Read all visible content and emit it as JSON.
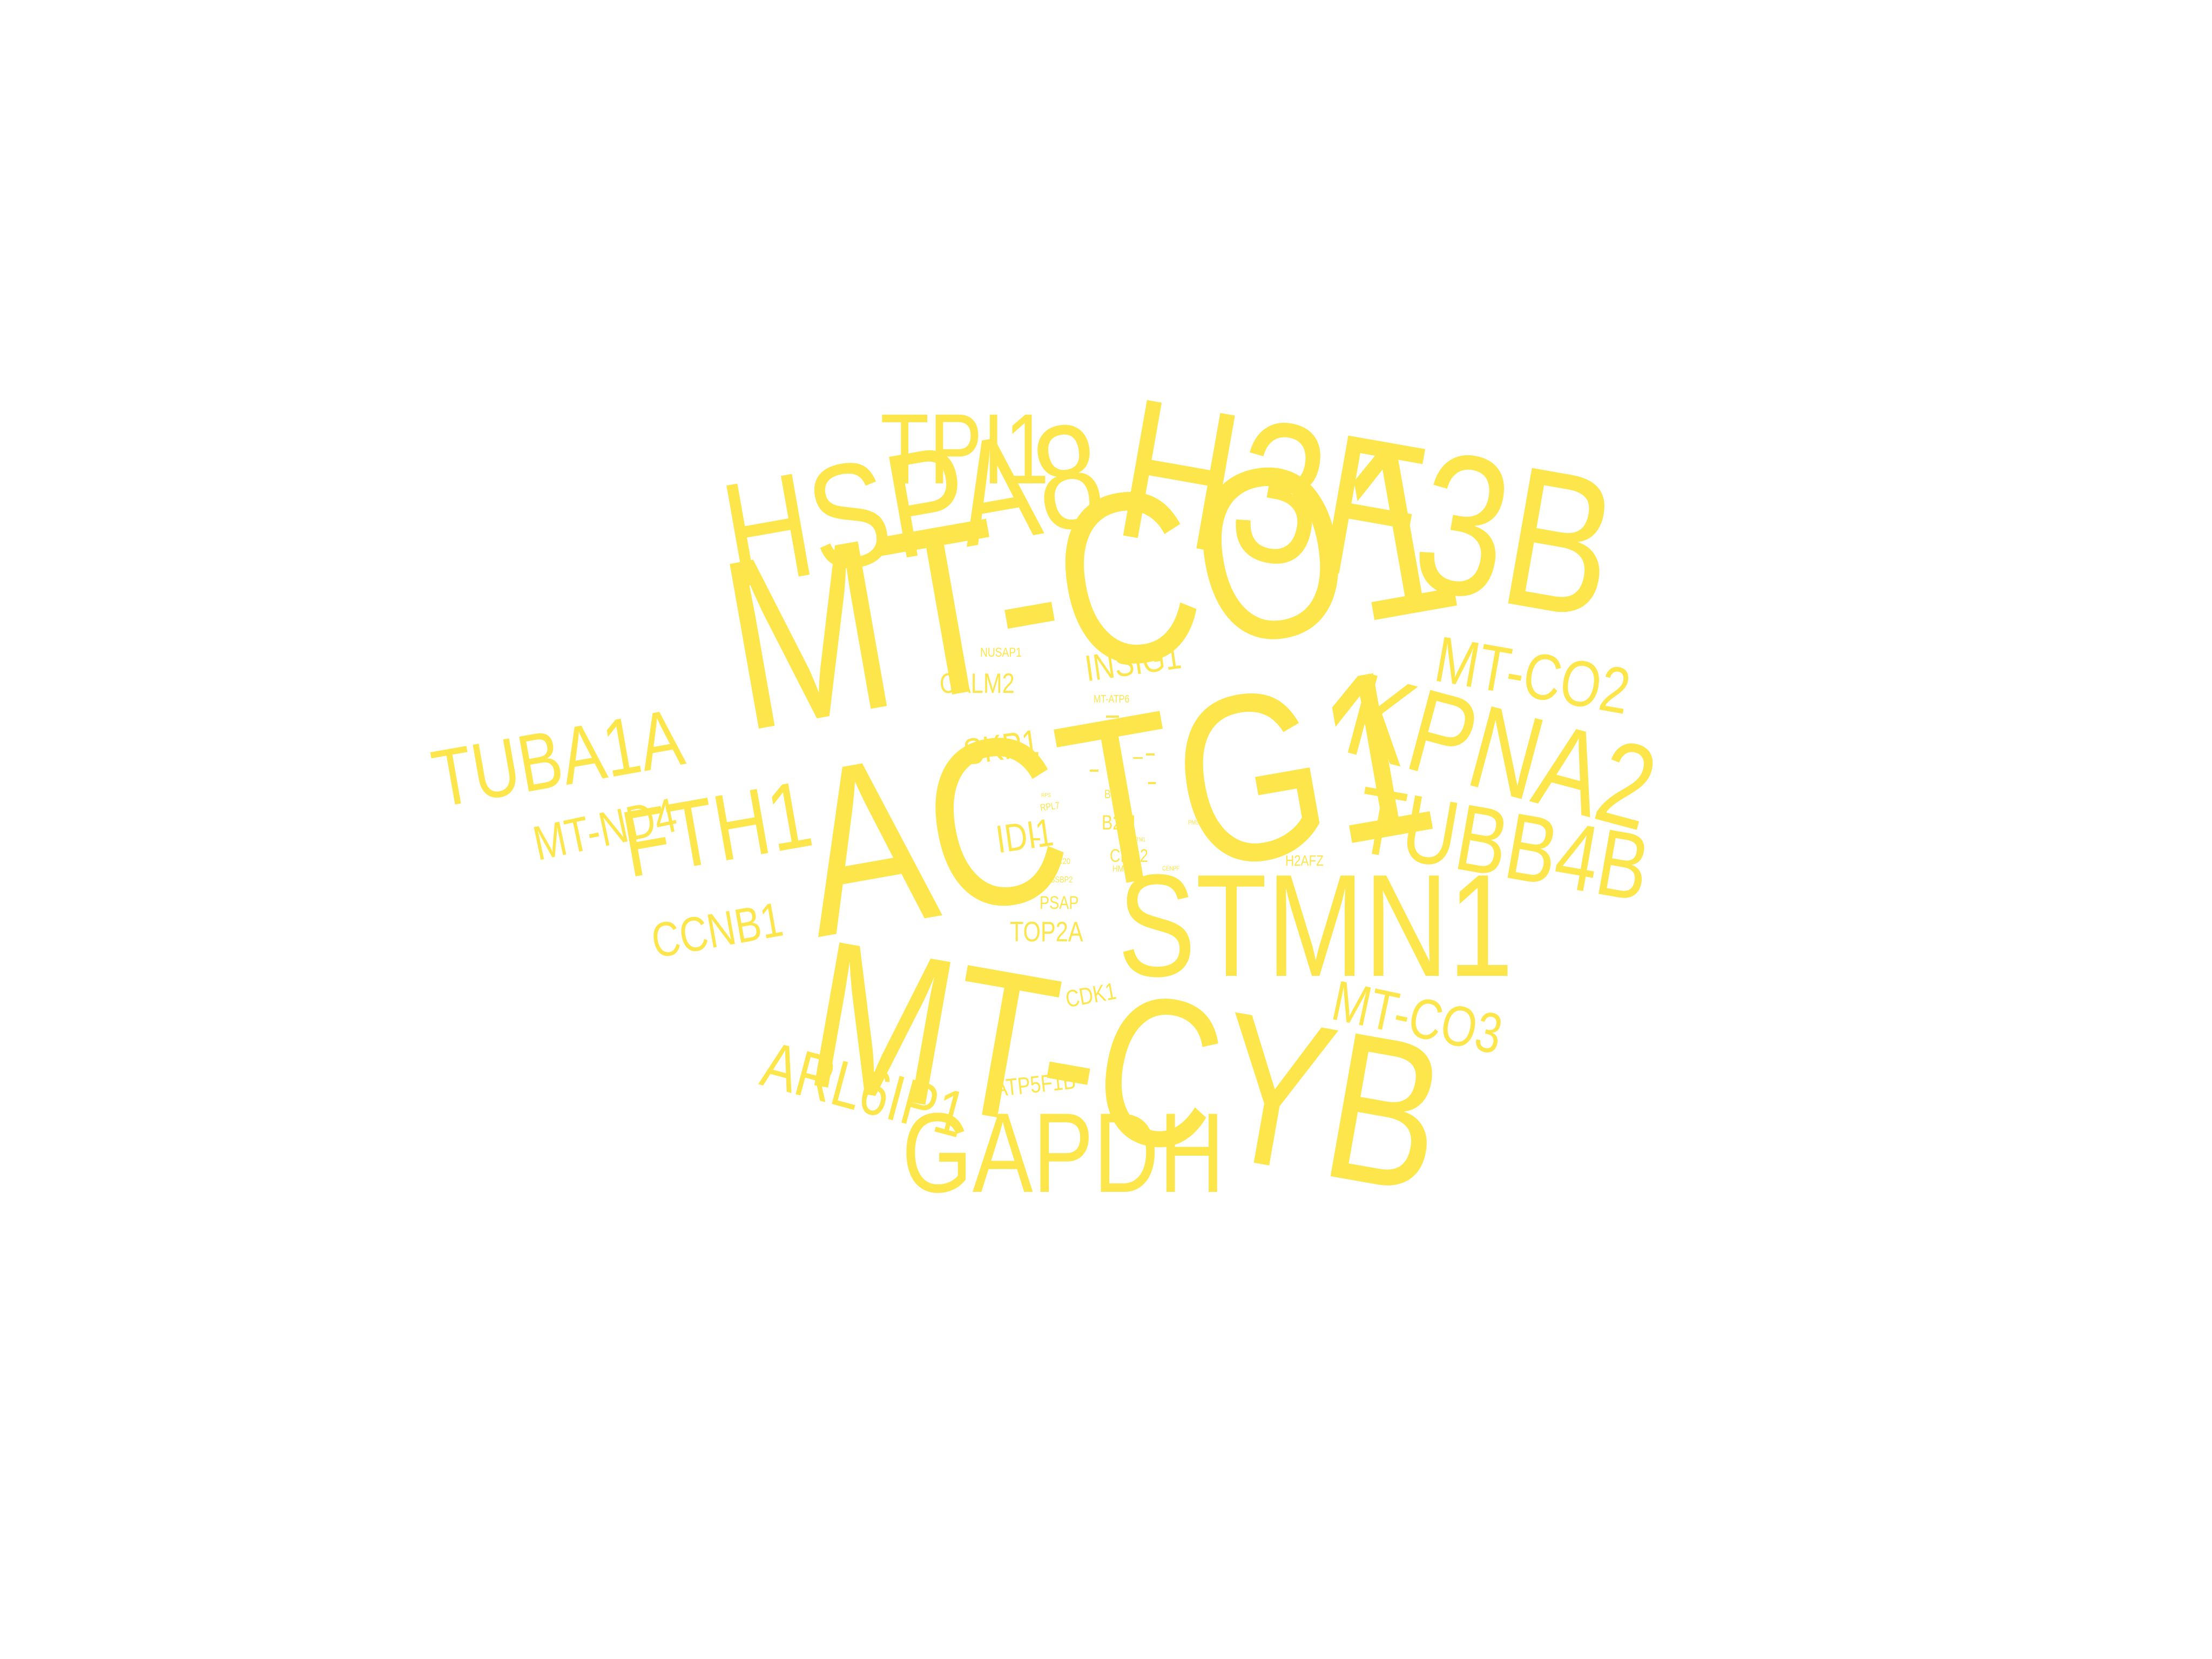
{
  "color": "#FDE64B",
  "background": "#FFFFFF",
  "words": [
    "MT-CO1",
    "ACTG1",
    "H3F3B",
    "MT-CYB",
    "STMN1",
    "HSPA8",
    "GAPDH",
    "KPNA2",
    "TPI1",
    "TUBB4B",
    "FTH1",
    "TUBA1A",
    "MT-CO2",
    "ARL6IP1",
    "MT-CO3",
    "CCNB1",
    "MT-ND4",
    "INSIG1",
    "IDI1",
    "SKP1",
    "CALM2",
    "TOP2A",
    "ATP5F1B",
    "CDK1",
    "B2M",
    "PSAP",
    "CKS2",
    "H2AFZ",
    "NUSAP1",
    "MT-ATP6",
    "BUB1",
    "RPL7",
    "CDC20",
    "SSBP2",
    "HMGB2",
    "PMSCE",
    "TUBA1B",
    "CENPF",
    "RPS",
    "SQSTM1"
  ]
}
